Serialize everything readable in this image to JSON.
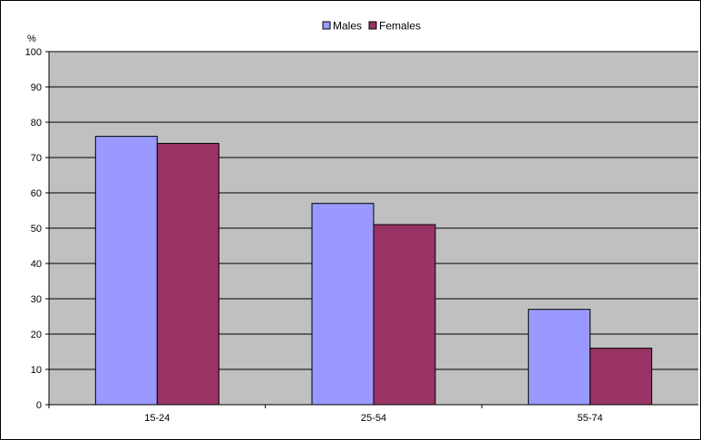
{
  "chart_data": {
    "type": "bar",
    "title": "",
    "xlabel": "",
    "ylabel": "%",
    "categories": [
      "15-24",
      "25-54",
      "55-74"
    ],
    "series": [
      {
        "name": "Males",
        "values": [
          76,
          57,
          27
        ],
        "color": "#9999ff"
      },
      {
        "name": "Females",
        "values": [
          74,
          51,
          16
        ],
        "color": "#993366"
      }
    ],
    "ylim": [
      0,
      100
    ],
    "yticks": [
      0,
      10,
      20,
      30,
      40,
      50,
      60,
      70,
      80,
      90,
      100
    ],
    "grid": true,
    "legend_position": "top-center",
    "plot_background": "#c0c0c0"
  }
}
